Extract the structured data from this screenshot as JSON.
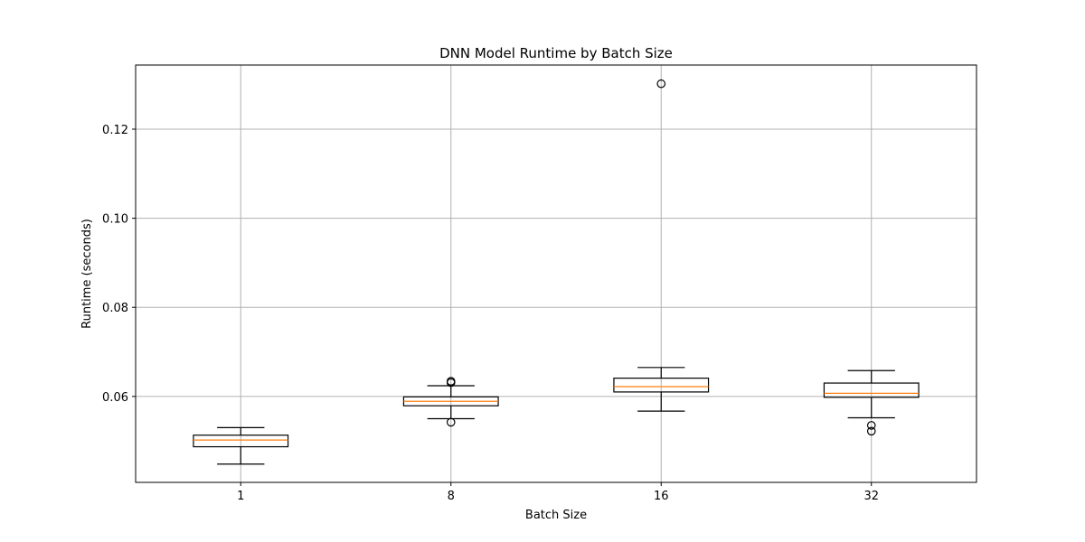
{
  "chart_data": {
    "type": "box",
    "title": "DNN Model Runtime by Batch Size",
    "xlabel": "Batch Size",
    "ylabel": "Runtime (seconds)",
    "categories": [
      "1",
      "8",
      "16",
      "32"
    ],
    "ylim": [
      0.0407,
      0.1344
    ],
    "yticks": [
      0.06,
      0.08,
      0.1,
      0.12
    ],
    "ytick_labels": [
      "0.06",
      "0.08",
      "0.10",
      "0.12"
    ],
    "grid": true,
    "colors": {
      "median": "#ff7f0e",
      "box": "#000000",
      "grid": "#b0b0b0"
    },
    "boxes": [
      {
        "category": "1",
        "whisker_low": 0.0448,
        "q1": 0.0487,
        "median": 0.0502,
        "q3": 0.0513,
        "whisker_high": 0.053,
        "outliers": []
      },
      {
        "category": "8",
        "whisker_low": 0.055,
        "q1": 0.0579,
        "median": 0.0589,
        "q3": 0.0599,
        "whisker_high": 0.0624,
        "outliers": [
          0.0542,
          0.0631,
          0.0634
        ]
      },
      {
        "category": "16",
        "whisker_low": 0.0567,
        "q1": 0.061,
        "median": 0.0622,
        "q3": 0.0641,
        "whisker_high": 0.0665,
        "outliers": [
          0.1302
        ]
      },
      {
        "category": "32",
        "whisker_low": 0.0552,
        "q1": 0.0598,
        "median": 0.0607,
        "q3": 0.063,
        "whisker_high": 0.0658,
        "outliers": [
          0.0535,
          0.0522
        ]
      }
    ]
  }
}
